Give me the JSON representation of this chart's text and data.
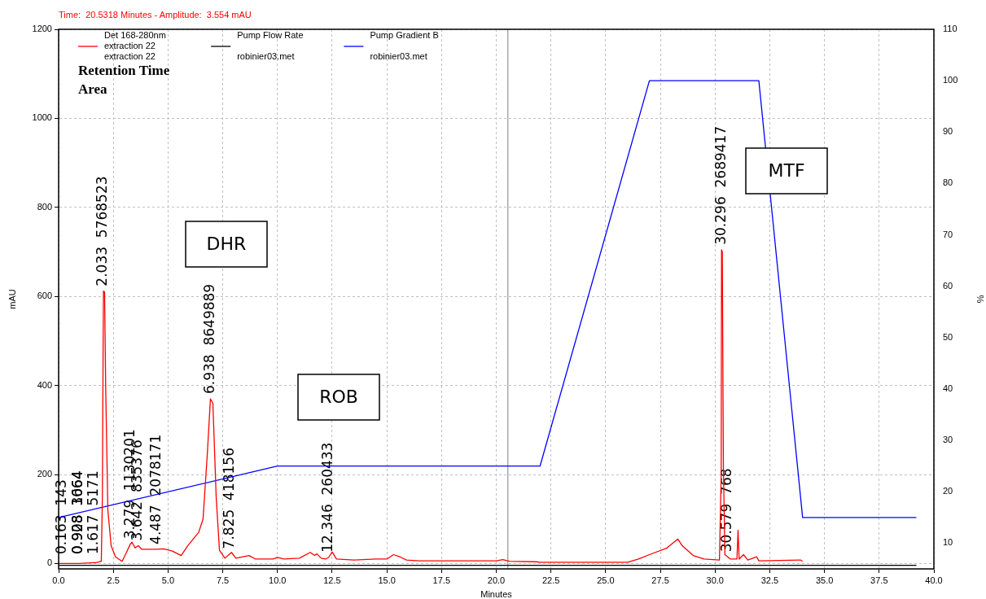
{
  "chart_data": {
    "type": "line",
    "title": "Time:  20.5318 Minutes - Amplitude:  3.554 mAU",
    "xlabel": "Minutes",
    "ylabel": "mAU",
    "y2label": "%",
    "xlim": [
      0,
      40
    ],
    "xticks": [
      {
        "value": 0,
        "label": "0.0"
      },
      {
        "value": 2.5,
        "label": "2.5"
      },
      {
        "value": 5,
        "label": "5.0"
      },
      {
        "value": 7.5,
        "label": "7.5"
      },
      {
        "value": 10,
        "label": "10.0"
      },
      {
        "value": 12.5,
        "label": "12.5"
      },
      {
        "value": 15,
        "label": "15.0"
      },
      {
        "value": 17.5,
        "label": "17.5"
      },
      {
        "value": 20,
        "label": "20.0"
      },
      {
        "value": 22.5,
        "label": "22.5"
      },
      {
        "value": 25,
        "label": "25.0"
      },
      {
        "value": 27.5,
        "label": "27.5"
      },
      {
        "value": 30,
        "label": "30.0"
      },
      {
        "value": 32.5,
        "label": "32.5"
      },
      {
        "value": 35,
        "label": "35.0"
      },
      {
        "value": 37.5,
        "label": "37.5"
      },
      {
        "value": 40,
        "label": "40.0"
      }
    ],
    "ylim": [
      -12,
      1200
    ],
    "yticks": [
      0,
      200,
      400,
      600,
      800,
      1000,
      1200
    ],
    "y2lim": [
      5,
      110
    ],
    "y2ticks": [
      10,
      20,
      30,
      40,
      50,
      60,
      70,
      80,
      90,
      100,
      110
    ],
    "grid": true,
    "legend": "top",
    "marker": "none",
    "line_style": "solid",
    "series": [
      {
        "name": "Det 168-280nm\nextraction 22\nextraction 22",
        "color": "#ff0000",
        "x": [
          0,
          0.163,
          0.908,
          0.928,
          1.617,
          1.7,
          1.95,
          2.0,
          2.033,
          2.05,
          2.1,
          2.15,
          2.25,
          2.4,
          2.6,
          2.9,
          3.1,
          3.279,
          3.35,
          3.5,
          3.642,
          3.8,
          4.2,
          4.487,
          4.8,
          5.2,
          5.6,
          5.9,
          6.4,
          6.6,
          6.8,
          6.938,
          7.05,
          7.2,
          7.35,
          7.6,
          7.825,
          7.9,
          8.1,
          8.7,
          9.0,
          9.8,
          10.0,
          10.3,
          11.0,
          11.5,
          11.7,
          11.8,
          12.0,
          12.2,
          12.346,
          12.5,
          12.7,
          13.5,
          14.5,
          15.0,
          15.3,
          15.6,
          15.9,
          16.5,
          20.0,
          20.3,
          20.6,
          21.8,
          22.0,
          26.0,
          26.5,
          27.0,
          27.8,
          28.3,
          28.5,
          29.0,
          29.5,
          30.2,
          30.28,
          30.296,
          30.33,
          30.38,
          30.45,
          30.579,
          30.7,
          31.0,
          31.05,
          31.1,
          31.3,
          31.5,
          31.9,
          32.0,
          33.9,
          34.0
        ],
        "values": [
          0,
          0,
          0,
          0,
          2,
          2,
          5,
          150,
          480,
          612,
          610,
          400,
          120,
          40,
          15,
          5,
          25,
          44,
          48,
          35,
          40,
          32,
          32,
          32,
          33,
          28,
          18,
          40,
          70,
          100,
          250,
          370,
          360,
          150,
          30,
          12,
          22,
          25,
          12,
          18,
          10,
          10,
          14,
          10,
          12,
          25,
          18,
          22,
          12,
          10,
          14,
          26,
          10,
          8,
          10,
          10,
          20,
          15,
          8,
          6,
          6,
          9,
          5,
          4,
          3,
          3,
          10,
          20,
          35,
          55,
          40,
          18,
          10,
          8,
          200,
          705,
          700,
          220,
          20,
          15,
          10,
          10,
          75,
          10,
          20,
          8,
          15,
          6,
          8,
          5
        ]
      },
      {
        "name": "Pump Flow Rate\nrobinier03.met",
        "color": "#000000",
        "axis": "y2",
        "x": [
          0,
          39.2
        ],
        "values": [
          5.7,
          5.7
        ]
      },
      {
        "name": "Pump Gradient B\nrobinier03.met",
        "color": "#0000ff",
        "axis": "y2",
        "x": [
          0,
          10,
          22,
          27,
          32,
          34,
          39.2
        ],
        "values": [
          15,
          25,
          25,
          100,
          100,
          15,
          15
        ]
      }
    ],
    "ref_lines": [
      {
        "axis": "x",
        "value": 20.5318,
        "color": "#808080"
      }
    ],
    "annotations": [
      "Retention Time",
      "Area",
      "DHR",
      "ROB",
      "MTF",
      {
        "text": "0.163  143",
        "x": 0.163,
        "y": 0
      },
      {
        "text": "0.908  1064",
        "x": 0.908,
        "y": 0
      },
      {
        "text": "0.928  3664",
        "x": 0.928,
        "y": 0
      },
      {
        "text": "1.617  5171",
        "x": 1.617,
        "y": 2
      },
      {
        "text": "2.033  5768523",
        "x": 2.033,
        "y": 612
      },
      {
        "text": "3.279  1130201",
        "x": 3.279,
        "y": 44
      },
      {
        "text": "3.642  835376",
        "x": 3.642,
        "y": 40
      },
      {
        "text": "4.487  2078171",
        "x": 4.487,
        "y": 32
      },
      {
        "text": "6.938  8649889",
        "x": 6.938,
        "y": 370
      },
      {
        "text": "7.825  418156",
        "x": 7.825,
        "y": 22
      },
      {
        "text": "12.346  260433",
        "x": 12.346,
        "y": 14
      },
      {
        "text": "30.296  2689417",
        "x": 30.296,
        "y": 705
      },
      {
        "text": "30.579  768",
        "x": 30.579,
        "y": 15
      }
    ]
  }
}
